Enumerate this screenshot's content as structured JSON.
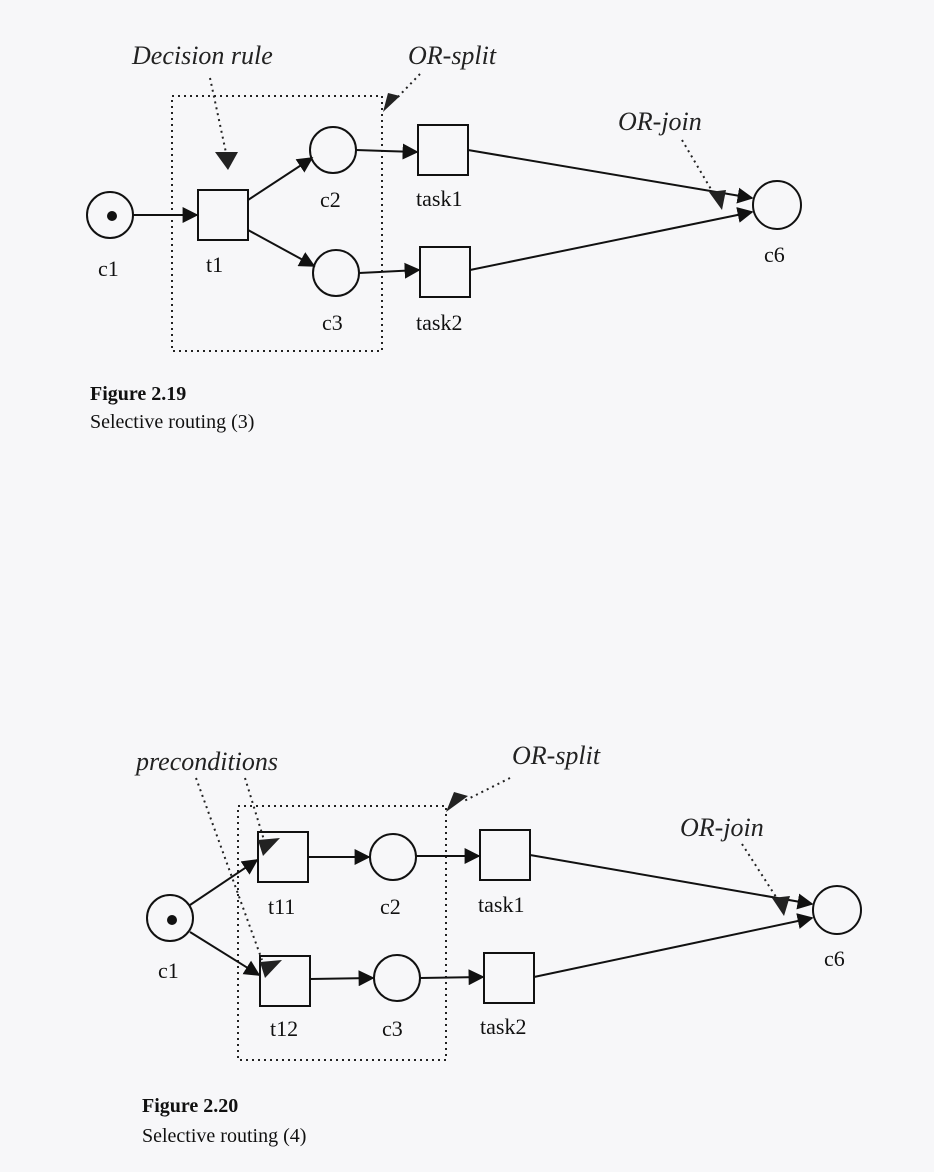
{
  "figure_a": {
    "annotations": {
      "decision_rule": "Decision rule",
      "or_split": "OR-split",
      "or_join": "OR-join"
    },
    "labels": {
      "c1": "c1",
      "t1": "t1",
      "c2": "c2",
      "c3": "c3",
      "task1": "task1",
      "task2": "task2",
      "c6": "c6"
    },
    "caption": {
      "title": "Figure 2.19",
      "subtitle": "Selective routing (3)"
    }
  },
  "figure_b": {
    "annotations": {
      "preconditions": "preconditions",
      "or_split": "OR-split",
      "or_join": "OR-join"
    },
    "labels": {
      "c1": "c1",
      "t11": "t11",
      "t12": "t12",
      "c2": "c2",
      "c3": "c3",
      "task1": "task1",
      "task2": "task2",
      "c6": "c6"
    },
    "caption": {
      "title": "Figure 2.20",
      "subtitle": "Selective routing (4)"
    }
  },
  "colors": {
    "ink": "#111111",
    "paper": "#f7f7f9"
  }
}
